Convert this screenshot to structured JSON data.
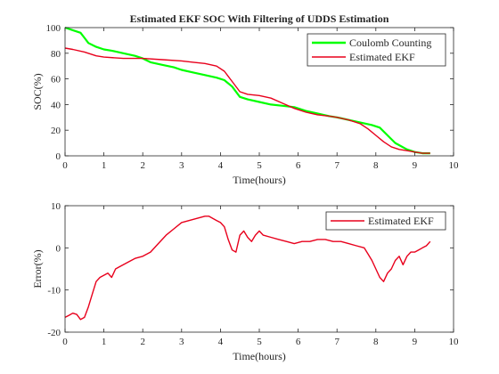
{
  "chart_data": [
    {
      "type": "line",
      "title": "Estimated EKF SOC With Filtering of UDDS Estimation",
      "xlabel": "Time(hours)",
      "ylabel": "SOC(%)",
      "xlim": [
        0,
        10
      ],
      "ylim": [
        0,
        100
      ],
      "xticks": [
        "0",
        "1",
        "2",
        "3",
        "4",
        "5",
        "6",
        "7",
        "8",
        "9",
        "10"
      ],
      "yticks": [
        "0",
        "20",
        "40",
        "60",
        "80",
        "100"
      ],
      "grid": false,
      "legend_position": "top-right",
      "series": [
        {
          "name": "Coulomb Counting",
          "color": "#00ff00",
          "x": [
            0,
            0.2,
            0.4,
            0.5,
            0.6,
            0.8,
            1.0,
            1.2,
            1.5,
            1.8,
            2.0,
            2.2,
            2.5,
            2.8,
            3.0,
            3.3,
            3.6,
            3.9,
            4.1,
            4.3,
            4.5,
            4.7,
            5.0,
            5.3,
            5.6,
            5.9,
            6.2,
            6.5,
            6.8,
            7.0,
            7.3,
            7.6,
            7.9,
            8.1,
            8.3,
            8.5,
            8.8,
            9.0,
            9.2,
            9.4
          ],
          "y": [
            100,
            98,
            96,
            92,
            88,
            85,
            83,
            82,
            80,
            78,
            76,
            73,
            71,
            69,
            67,
            65,
            63,
            61,
            59,
            54,
            46,
            44,
            42,
            40,
            39,
            38,
            35,
            33,
            31,
            30,
            28,
            26,
            24,
            22,
            16,
            10,
            5,
            3,
            2,
            2
          ]
        },
        {
          "name": "Estimated EKF",
          "color": "#e8001c",
          "x": [
            0,
            0.2,
            0.5,
            0.8,
            1.0,
            1.5,
            2.0,
            2.5,
            3.0,
            3.3,
            3.6,
            3.9,
            4.1,
            4.3,
            4.5,
            4.7,
            5.0,
            5.3,
            5.6,
            5.9,
            6.2,
            6.5,
            6.8,
            7.0,
            7.3,
            7.6,
            7.8,
            8.0,
            8.2,
            8.4,
            8.6,
            8.8,
            9.0,
            9.2,
            9.4
          ],
          "y": [
            84,
            83,
            81,
            78,
            77,
            76,
            76,
            75,
            74,
            73,
            72,
            70,
            66,
            58,
            50,
            48,
            47,
            45,
            41,
            37,
            34,
            32,
            31,
            30,
            28,
            25,
            21,
            16,
            11,
            7,
            5,
            4,
            3,
            2,
            2
          ]
        }
      ]
    },
    {
      "type": "line",
      "title": "",
      "xlabel": "Time(hours)",
      "ylabel": "Error(%)",
      "xlim": [
        0,
        10
      ],
      "ylim": [
        -20,
        10
      ],
      "xticks": [
        "0",
        "1",
        "2",
        "3",
        "4",
        "5",
        "6",
        "7",
        "8",
        "9",
        "10"
      ],
      "yticks": [
        "-20",
        "-10",
        "0",
        "10"
      ],
      "grid": false,
      "legend_position": "top-right",
      "series": [
        {
          "name": "Estimated EKF",
          "color": "#e8001c",
          "x": [
            0,
            0.1,
            0.2,
            0.3,
            0.4,
            0.5,
            0.6,
            0.7,
            0.8,
            0.9,
            1.0,
            1.1,
            1.2,
            1.3,
            1.4,
            1.6,
            1.8,
            2.0,
            2.2,
            2.4,
            2.6,
            2.8,
            3.0,
            3.2,
            3.4,
            3.6,
            3.7,
            3.9,
            4.0,
            4.1,
            4.2,
            4.3,
            4.4,
            4.5,
            4.6,
            4.7,
            4.8,
            4.9,
            5.0,
            5.1,
            5.3,
            5.5,
            5.7,
            5.9,
            6.1,
            6.3,
            6.5,
            6.7,
            6.9,
            7.1,
            7.3,
            7.5,
            7.7,
            7.8,
            7.9,
            8.0,
            8.1,
            8.2,
            8.3,
            8.4,
            8.5,
            8.6,
            8.7,
            8.8,
            8.9,
            9.0,
            9.1,
            9.2,
            9.3,
            9.4
          ],
          "y": [
            -16.5,
            -16,
            -15.5,
            -15.8,
            -17,
            -16.5,
            -14,
            -11,
            -8,
            -7,
            -6.5,
            -6,
            -7,
            -5,
            -4.5,
            -3.5,
            -2.5,
            -2,
            -1,
            1,
            3,
            4.5,
            6,
            6.5,
            7,
            7.5,
            7.5,
            6.5,
            6,
            5,
            2,
            -0.5,
            -1,
            3,
            4,
            2.5,
            1.5,
            3,
            4,
            3,
            2.5,
            2,
            1.5,
            1,
            1.5,
            1.5,
            2,
            2,
            1.5,
            1.5,
            1,
            0.5,
            0,
            -1.5,
            -3,
            -5,
            -7,
            -8,
            -6,
            -5,
            -3,
            -2,
            -4,
            -2,
            -1,
            -1,
            -0.5,
            0,
            0.5,
            1.5
          ]
        }
      ]
    }
  ]
}
